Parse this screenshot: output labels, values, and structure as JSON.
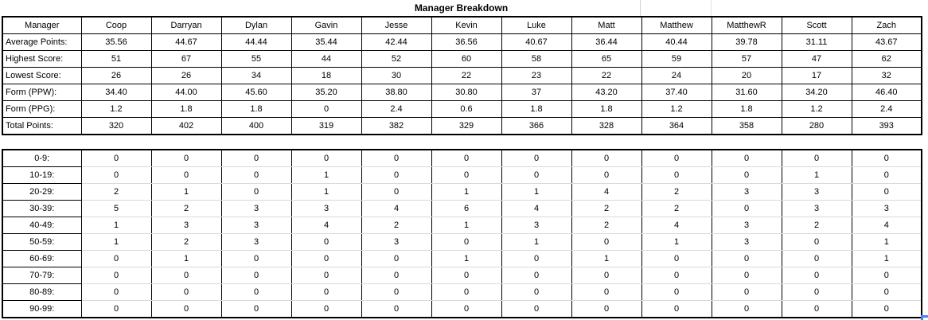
{
  "title": "Manager Breakdown",
  "managers": [
    "Coop",
    "Darryan",
    "Dylan",
    "Gavin",
    "Jesse",
    "Kevin",
    "Luke",
    "Matt",
    "Matthew",
    "MatthewR",
    "Scott",
    "Zach"
  ],
  "summary_table": {
    "corner_label": "Manager",
    "rows": [
      {
        "label": "Average Points:",
        "values": [
          "35.56",
          "44.67",
          "44.44",
          "35.44",
          "42.44",
          "36.56",
          "40.67",
          "36.44",
          "40.44",
          "39.78",
          "31.11",
          "43.67"
        ]
      },
      {
        "label": "Highest Score:",
        "values": [
          "51",
          "67",
          "55",
          "44",
          "52",
          "60",
          "58",
          "65",
          "59",
          "57",
          "47",
          "62"
        ]
      },
      {
        "label": "Lowest Score:",
        "values": [
          "26",
          "26",
          "34",
          "18",
          "30",
          "22",
          "23",
          "22",
          "24",
          "20",
          "17",
          "32"
        ]
      },
      {
        "label": "Form (PPW):",
        "values": [
          "34.40",
          "44.00",
          "45.60",
          "35.20",
          "38.80",
          "30.80",
          "37",
          "43.20",
          "37.40",
          "31.60",
          "34.20",
          "46.40"
        ]
      },
      {
        "label": "Form (PPG):",
        "values": [
          "1.2",
          "1.8",
          "1.8",
          "0",
          "2.4",
          "0.6",
          "1.8",
          "1.8",
          "1.2",
          "1.8",
          "1.2",
          "2.4"
        ]
      },
      {
        "label": "Total Points:",
        "values": [
          "320",
          "402",
          "400",
          "319",
          "382",
          "329",
          "366",
          "328",
          "364",
          "358",
          "280",
          "393"
        ]
      }
    ]
  },
  "distribution_table": {
    "rows": [
      {
        "label": "0-9:",
        "values": [
          "0",
          "0",
          "0",
          "0",
          "0",
          "0",
          "0",
          "0",
          "0",
          "0",
          "0",
          "0"
        ]
      },
      {
        "label": "10-19:",
        "values": [
          "0",
          "0",
          "0",
          "1",
          "0",
          "0",
          "0",
          "0",
          "0",
          "0",
          "1",
          "0"
        ]
      },
      {
        "label": "20-29:",
        "values": [
          "2",
          "1",
          "0",
          "1",
          "0",
          "1",
          "1",
          "4",
          "2",
          "3",
          "3",
          "0"
        ]
      },
      {
        "label": "30-39:",
        "values": [
          "5",
          "2",
          "3",
          "3",
          "4",
          "6",
          "4",
          "2",
          "2",
          "0",
          "3",
          "3"
        ]
      },
      {
        "label": "40-49:",
        "values": [
          "1",
          "3",
          "3",
          "4",
          "2",
          "1",
          "3",
          "2",
          "4",
          "3",
          "2",
          "4"
        ]
      },
      {
        "label": "50-59:",
        "values": [
          "1",
          "2",
          "3",
          "0",
          "3",
          "0",
          "1",
          "0",
          "1",
          "3",
          "0",
          "1"
        ]
      },
      {
        "label": "60-69:",
        "values": [
          "0",
          "1",
          "0",
          "0",
          "0",
          "1",
          "0",
          "1",
          "0",
          "0",
          "0",
          "1"
        ]
      },
      {
        "label": "70-79:",
        "values": [
          "0",
          "0",
          "0",
          "0",
          "0",
          "0",
          "0",
          "0",
          "0",
          "0",
          "0",
          "0"
        ]
      },
      {
        "label": "80-89:",
        "values": [
          "0",
          "0",
          "0",
          "0",
          "0",
          "0",
          "0",
          "0",
          "0",
          "0",
          "0",
          "0"
        ]
      },
      {
        "label": "90-99:",
        "values": [
          "0",
          "0",
          "0",
          "0",
          "0",
          "0",
          "0",
          "0",
          "0",
          "0",
          "0",
          "0"
        ]
      }
    ]
  },
  "colors": {
    "border_black": "#000000",
    "gridline_gray": "#dadada",
    "selection_blue": "#4a86e8"
  },
  "layout_labels": {
    "label_col_width": 99,
    "value_col_width": 88
  }
}
